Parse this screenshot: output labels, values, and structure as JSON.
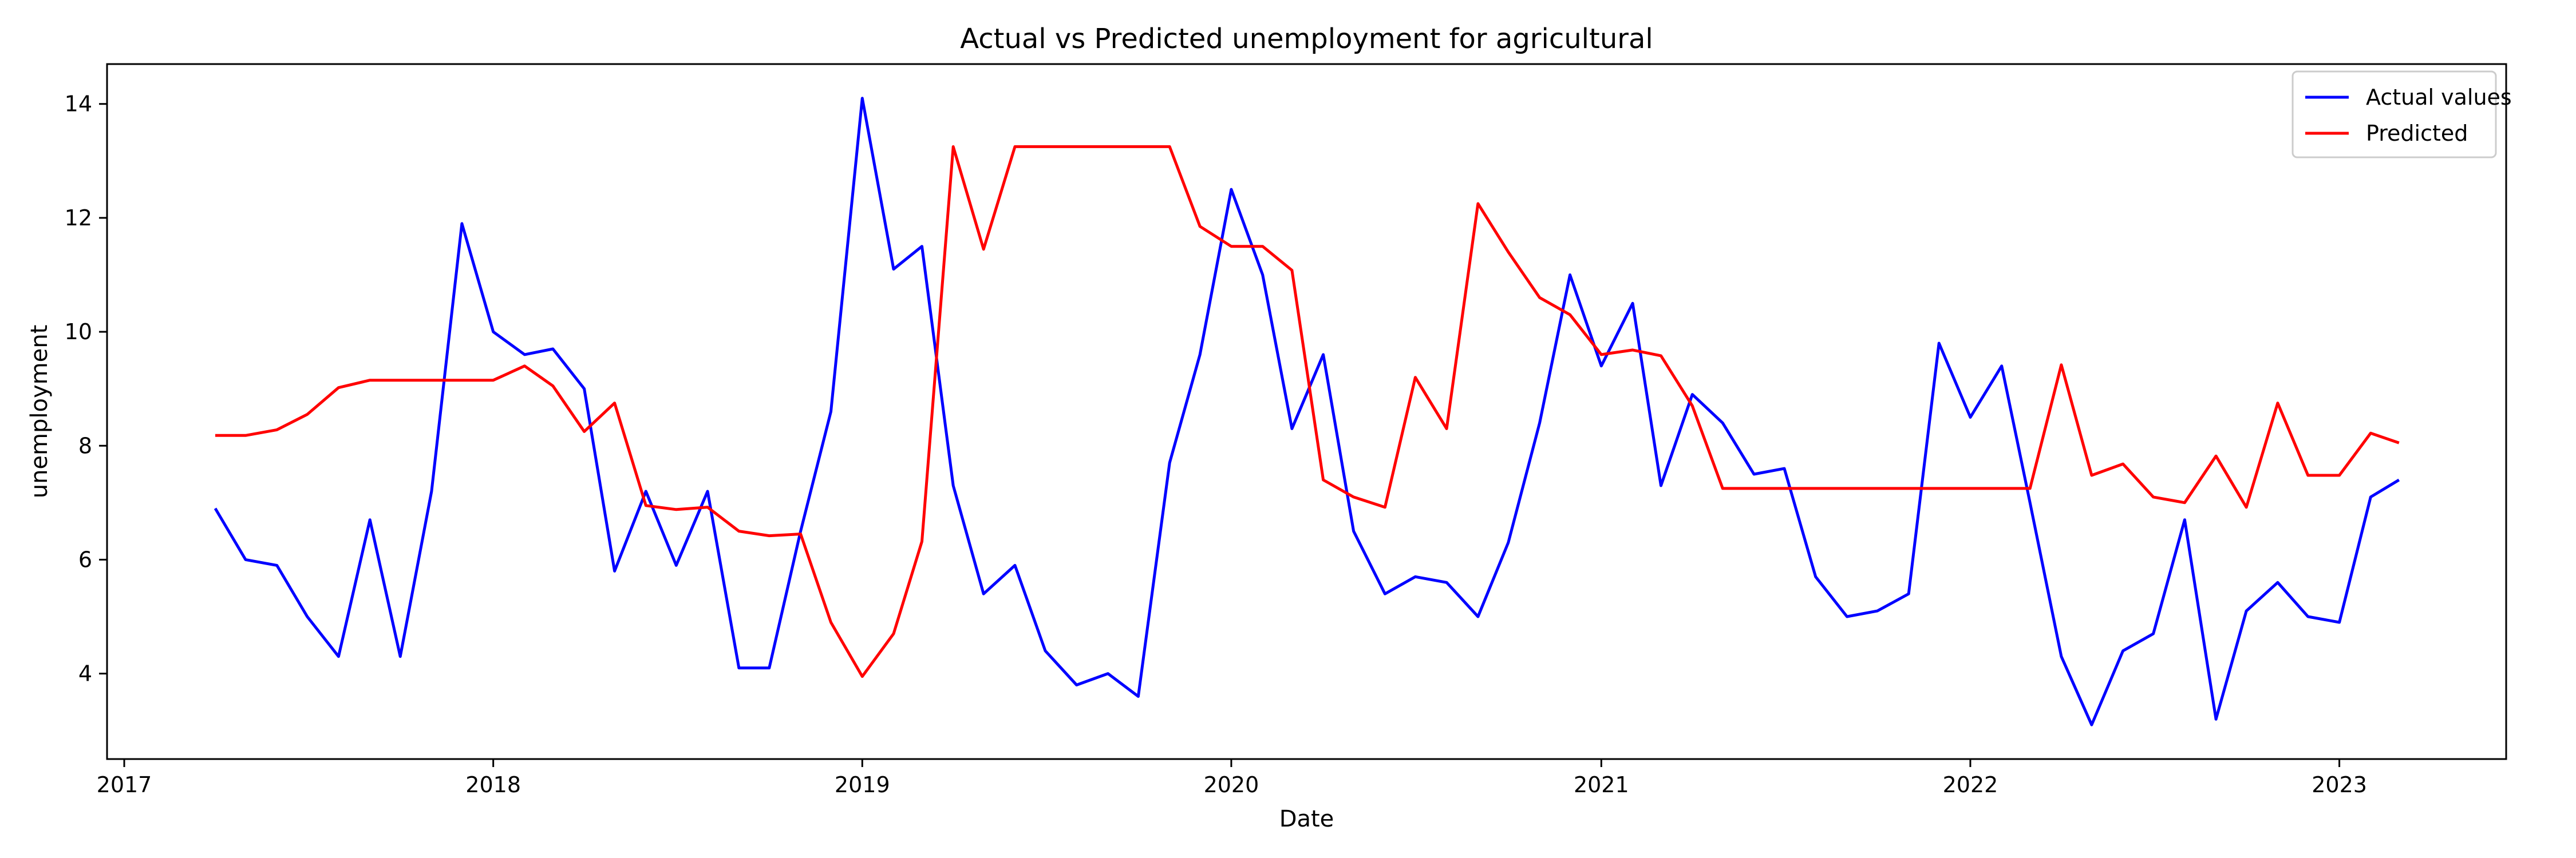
{
  "chart_data": {
    "type": "line",
    "title": "Actual vs Predicted unemployment for agricultural",
    "xlabel": "Date",
    "ylabel": "unemployment",
    "xlim": [
      "2016-12-15",
      "2023-06-15"
    ],
    "ylim": [
      2.5,
      14.7
    ],
    "x_ticks": [
      "2017-01-01",
      "2018-01-01",
      "2019-01-01",
      "2020-01-01",
      "2021-01-01",
      "2022-01-01",
      "2023-01-01"
    ],
    "x_tick_labels": [
      "2017",
      "2018",
      "2019",
      "2020",
      "2021",
      "2022",
      "2023"
    ],
    "y_ticks": [
      4,
      6,
      8,
      10,
      12,
      14
    ],
    "y_tick_labels": [
      "4",
      "6",
      "8",
      "10",
      "12",
      "14"
    ],
    "grid": false,
    "legend_position": "top-right",
    "x": [
      "2017-04-01",
      "2017-05-01",
      "2017-06-01",
      "2017-07-01",
      "2017-08-01",
      "2017-09-01",
      "2017-10-01",
      "2017-11-01",
      "2017-12-01",
      "2018-01-01",
      "2018-02-01",
      "2018-03-01",
      "2018-04-01",
      "2018-05-01",
      "2018-06-01",
      "2018-07-01",
      "2018-08-01",
      "2018-09-01",
      "2018-10-01",
      "2018-11-01",
      "2018-12-01",
      "2019-01-01",
      "2019-02-01",
      "2019-03-01",
      "2019-04-01",
      "2019-05-01",
      "2019-06-01",
      "2019-07-01",
      "2019-08-01",
      "2019-09-01",
      "2019-10-01",
      "2019-11-01",
      "2019-12-01",
      "2020-01-01",
      "2020-02-01",
      "2020-03-01",
      "2020-04-01",
      "2020-05-01",
      "2020-06-01",
      "2020-07-01",
      "2020-08-01",
      "2020-09-01",
      "2020-10-01",
      "2020-11-01",
      "2020-12-01",
      "2021-01-01",
      "2021-02-01",
      "2021-03-01",
      "2021-04-01",
      "2021-05-01",
      "2021-06-01",
      "2021-07-01",
      "2021-08-01",
      "2021-09-01",
      "2021-10-01",
      "2021-11-01",
      "2021-12-01",
      "2022-01-01",
      "2022-02-01",
      "2022-03-01",
      "2022-04-01",
      "2022-05-01",
      "2022-06-01",
      "2022-07-01",
      "2022-08-01",
      "2022-09-01",
      "2022-10-01",
      "2022-11-01",
      "2022-12-01",
      "2023-01-01",
      "2023-02-01",
      "2023-03-01"
    ],
    "series": [
      {
        "name": "Actual values",
        "color": "#0000ff",
        "values": [
          6.9,
          6.0,
          5.9,
          5.0,
          4.3,
          6.7,
          4.3,
          7.2,
          11.9,
          10.0,
          9.6,
          9.7,
          9.0,
          5.8,
          7.2,
          5.9,
          7.2,
          4.1,
          4.1,
          6.5,
          8.6,
          14.1,
          11.1,
          11.5,
          7.3,
          5.4,
          5.9,
          4.4,
          3.8,
          4.0,
          3.6,
          7.7,
          9.6,
          12.5,
          11.0,
          8.3,
          9.6,
          6.5,
          5.4,
          5.7,
          5.6,
          5.0,
          6.3,
          8.4,
          11.0,
          9.4,
          10.5,
          7.3,
          8.9,
          8.4,
          7.5,
          7.6,
          5.7,
          5.0,
          5.1,
          5.4,
          9.8,
          8.5,
          9.4,
          7.0,
          4.3,
          3.1,
          4.4,
          4.7,
          6.7,
          3.2,
          5.1,
          5.6,
          5.0,
          4.9,
          7.1,
          7.4
        ]
      },
      {
        "name": "Predicted",
        "color": "#ff0000",
        "values": [
          8.18,
          8.18,
          8.28,
          8.55,
          9.02,
          9.15,
          9.15,
          9.15,
          9.15,
          9.15,
          9.4,
          9.05,
          8.25,
          8.75,
          6.95,
          6.88,
          6.92,
          6.5,
          6.42,
          6.45,
          4.9,
          3.95,
          4.7,
          6.32,
          13.25,
          11.45,
          13.25,
          13.25,
          13.25,
          13.25,
          13.25,
          13.25,
          11.85,
          11.5,
          11.5,
          11.08,
          7.4,
          7.1,
          6.92,
          9.2,
          8.3,
          12.25,
          11.4,
          10.6,
          10.3,
          9.6,
          9.68,
          9.58,
          8.7,
          7.25,
          7.25,
          7.25,
          7.25,
          7.25,
          7.25,
          7.25,
          7.25,
          7.25,
          7.25,
          7.25,
          9.42,
          7.48,
          7.68,
          7.1,
          7.0,
          7.82,
          6.92,
          8.75,
          7.48,
          7.48,
          8.22,
          8.05
        ]
      }
    ]
  }
}
